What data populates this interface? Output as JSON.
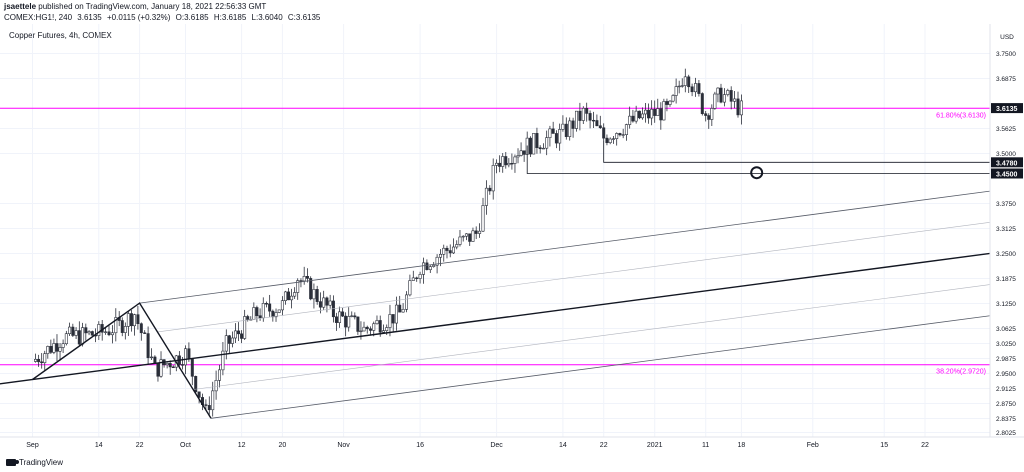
{
  "header": {
    "author": "jsaettele",
    "published_text": "published on TradingView.com, January 18, 2021 22:56:33 GMT",
    "symbol": "COMEX:HG1!, 240",
    "last": "3.6135",
    "change": "+0.0115 (+0.32%)",
    "open": "O:3.6185",
    "high": "H:3.6185",
    "low": "L:3.6040",
    "close": "C:3.6135"
  },
  "footer": {
    "brand": "TradingView"
  },
  "colors": {
    "background": "#ffffff",
    "candle": "#2a2e39",
    "fib_line": "#ff00ff",
    "price_badge": "#131722",
    "axis_text": "#131722"
  },
  "chart_data": {
    "type": "candlestick",
    "title": "Copper Futures, 4h, COMEX",
    "currency": "USD",
    "ylim": [
      2.78,
      3.84
    ],
    "y_ticks": [
      "3.7500",
      "3.6875",
      "3.5625",
      "3.5000",
      "3.3750",
      "3.3125",
      "3.2500",
      "3.1875",
      "3.1250",
      "3.0625",
      "3.0250",
      "2.9875",
      "2.9500",
      "2.9125",
      "2.8750",
      "2.8375",
      "2.8025"
    ],
    "x_ticks": [
      "Sep",
      "14",
      "22",
      "Oct",
      "12",
      "20",
      "Nov",
      "16",
      "Dec",
      "14",
      "22",
      "2021",
      "11",
      "18",
      "Feb",
      "15",
      "22"
    ],
    "price_labels": [
      {
        "value": 3.6135,
        "text": "3.6135"
      },
      {
        "value": 3.478,
        "text": "3.4780"
      },
      {
        "value": 3.45,
        "text": "3.4500"
      }
    ],
    "fib_levels": [
      {
        "value": 3.613,
        "label": "61.80%(3.6130)"
      },
      {
        "value": 2.972,
        "label": "38.20%(2.9720)"
      }
    ],
    "series": [
      {
        "name": "",
        "close_path": [
          [
            "Sep 01",
            2.98
          ],
          [
            "Sep 07",
            3.04
          ],
          [
            "Sep 14",
            3.05
          ],
          [
            "Sep 18",
            3.07
          ],
          [
            "Sep 21",
            3.1
          ],
          [
            "Sep 25",
            2.96
          ],
          [
            "Oct 01",
            3.0
          ],
          [
            "Oct 05",
            2.85
          ],
          [
            "Oct 09",
            3.02
          ],
          [
            "Oct 15",
            3.1
          ],
          [
            "Oct 20",
            3.12
          ],
          [
            "Oct 23",
            3.19
          ],
          [
            "Oct 30",
            3.1
          ],
          [
            "Nov 05",
            3.06
          ],
          [
            "Nov 12",
            3.1
          ],
          [
            "Nov 16",
            3.22
          ],
          [
            "Nov 20",
            3.25
          ],
          [
            "Nov 27",
            3.3
          ],
          [
            "Dec 01",
            3.48
          ],
          [
            "Dec 07",
            3.52
          ],
          [
            "Dec 14",
            3.55
          ],
          [
            "Dec 18",
            3.6
          ],
          [
            "Dec 22",
            3.54
          ],
          [
            "Dec 29",
            3.59
          ],
          [
            "Jan 04",
            3.61
          ],
          [
            "Jan 07",
            3.71
          ],
          [
            "Jan 11",
            3.6
          ],
          [
            "Jan 14",
            3.65
          ],
          [
            "Jan 18",
            3.61
          ]
        ]
      }
    ],
    "annotations": {
      "pitchfork_pivots": [
        [
          "Sep 01",
          2.935
        ],
        [
          "Sep 22",
          3.126
        ],
        [
          "Oct 06",
          2.838
        ]
      ],
      "horizontal_levels": [
        3.478,
        3.45
      ],
      "circle_marker": [
        "Jan 21",
        3.452
      ]
    },
    "grid": true,
    "legend": "none"
  }
}
